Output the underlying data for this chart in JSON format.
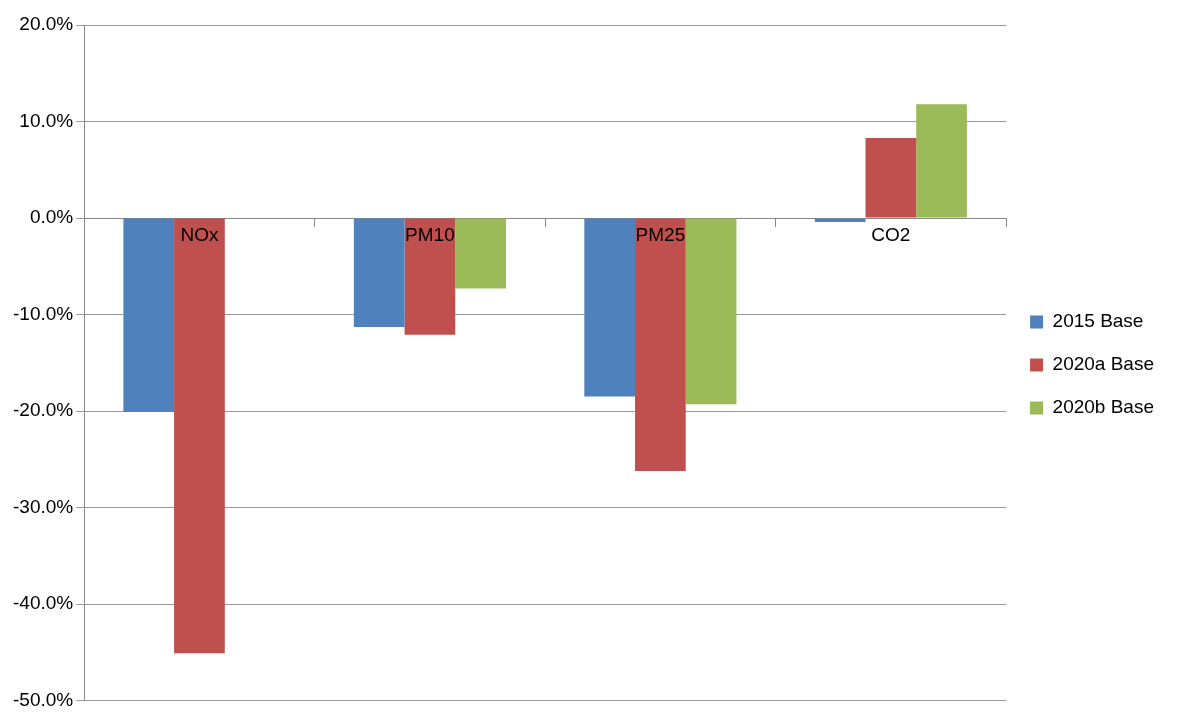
{
  "chart_data": {
    "type": "bar",
    "categories": [
      "NOx",
      "PM10",
      "PM25",
      "CO2"
    ],
    "series": [
      {
        "name": "2015 Base",
        "color": "#4f81bd",
        "values": [
          -20.1,
          -11.3,
          -18.5,
          -0.4
        ]
      },
      {
        "name": "2020a Base",
        "color": "#c0504d",
        "values": [
          -45.1,
          -12.1,
          -26.2,
          8.3
        ]
      },
      {
        "name": "2020b Base",
        "color": "#9bbb59",
        "values": [
          null,
          -7.3,
          -19.3,
          11.8
        ]
      }
    ],
    "ylim": [
      -50,
      20
    ],
    "yticks": [
      {
        "value": -50,
        "label": "-50.0%"
      },
      {
        "value": -40,
        "label": "-40.0%"
      },
      {
        "value": -30,
        "label": "-30.0%"
      },
      {
        "value": -20,
        "label": "-20.0%"
      },
      {
        "value": -10,
        "label": "-10.0%"
      },
      {
        "value": 0,
        "label": "0.0%"
      },
      {
        "value": 10,
        "label": "10.0%"
      },
      {
        "value": 20,
        "label": "20.0%"
      }
    ],
    "grid": "y",
    "legend": "right"
  }
}
